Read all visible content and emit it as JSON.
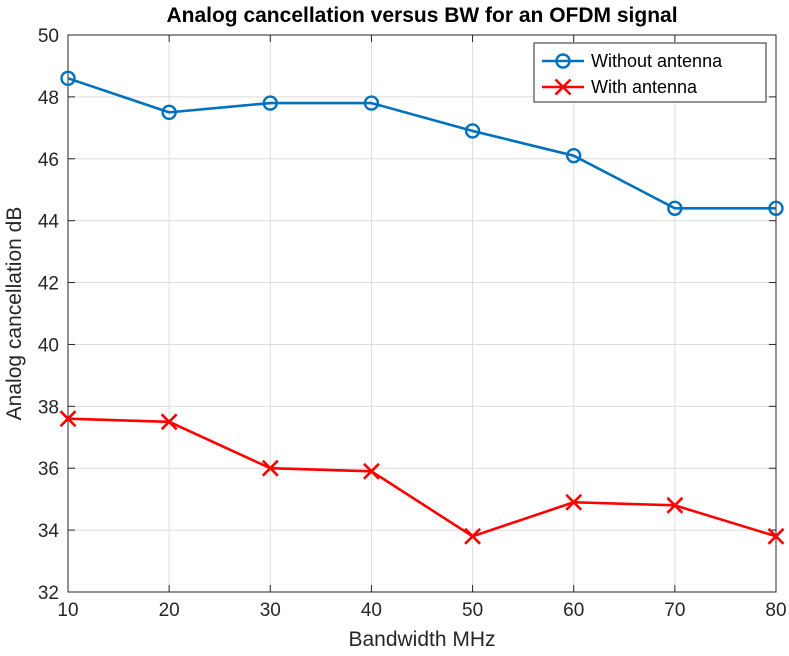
{
  "chart_data": {
    "type": "line",
    "title": "Analog cancellation versus BW for an OFDM signal",
    "xlabel": "Bandwidth MHz",
    "ylabel": "Analog cancellation dB",
    "xlim": [
      10,
      80
    ],
    "ylim": [
      32,
      50
    ],
    "xticks": [
      10,
      20,
      30,
      40,
      50,
      60,
      70,
      80
    ],
    "yticks": [
      32,
      34,
      36,
      38,
      40,
      42,
      44,
      46,
      48,
      50
    ],
    "grid": true,
    "legend_position": "top-right",
    "x": [
      10,
      20,
      30,
      40,
      50,
      60,
      70,
      80
    ],
    "series": [
      {
        "name": "Without antenna",
        "color": "#0072bd",
        "marker": "circle",
        "values": [
          48.6,
          47.5,
          47.8,
          47.8,
          46.9,
          46.1,
          44.4,
          44.4
        ]
      },
      {
        "name": "With antenna",
        "color": "#ff0000",
        "marker": "x",
        "values": [
          37.6,
          37.5,
          36.0,
          35.9,
          33.8,
          34.9,
          34.8,
          33.8
        ]
      }
    ]
  }
}
